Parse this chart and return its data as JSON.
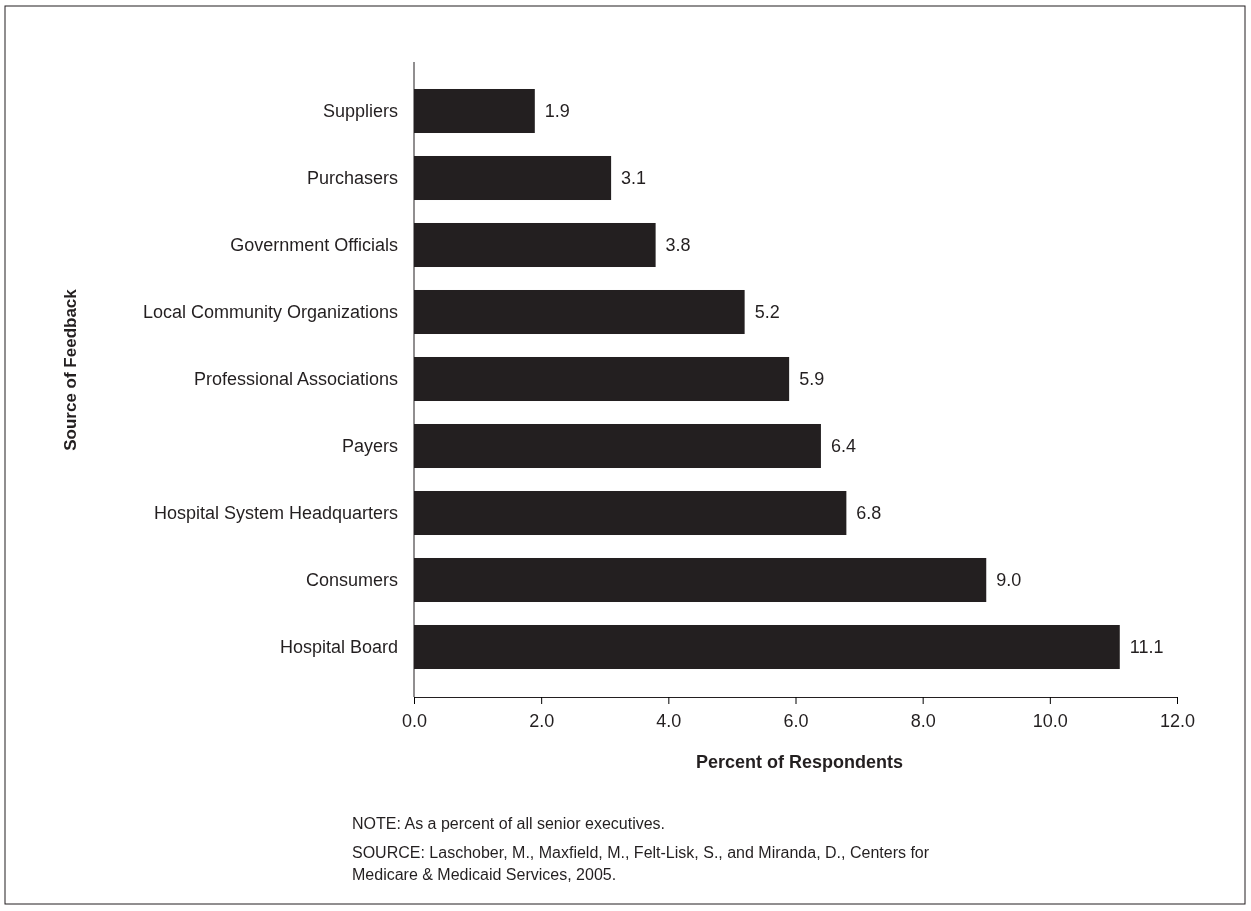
{
  "chart_data": {
    "type": "bar",
    "orientation": "horizontal",
    "xlabel": "Percent of Respondents",
    "ylabel": "Source of Feedback",
    "categories": [
      "Suppliers",
      "Purchasers",
      "Government Officials",
      "Local Community Organizations",
      "Professional Associations",
      "Payers",
      "Hospital System Headquarters",
      "Consumers",
      "Hospital Board"
    ],
    "values": [
      1.9,
      3.1,
      3.8,
      5.2,
      5.9,
      6.4,
      6.8,
      9.0,
      11.1
    ],
    "value_labels": [
      "1.9",
      "3.1",
      "3.8",
      "5.2",
      "5.9",
      "6.4",
      "6.8",
      "9.0",
      "11.1"
    ],
    "color": "#231f20",
    "xlim": [
      0,
      12
    ],
    "xticks": [
      {
        "value": 0,
        "label": "0.0"
      },
      {
        "value": 2,
        "label": "2.0"
      },
      {
        "value": 4,
        "label": "4.0"
      },
      {
        "value": 6,
        "label": "6.0"
      },
      {
        "value": 8,
        "label": "8.0"
      },
      {
        "value": 10,
        "label": "10.0"
      },
      {
        "value": 12,
        "label": "12.0"
      }
    ],
    "grid": false,
    "annotations": [
      "NOTE: As a percent of all senior executives.",
      "SOURCE: Laschober, M., Maxfield, M., Felt-Lisk, S., and Miranda, D., Centers for Medicare & Medicaid Services, 2005."
    ]
  }
}
